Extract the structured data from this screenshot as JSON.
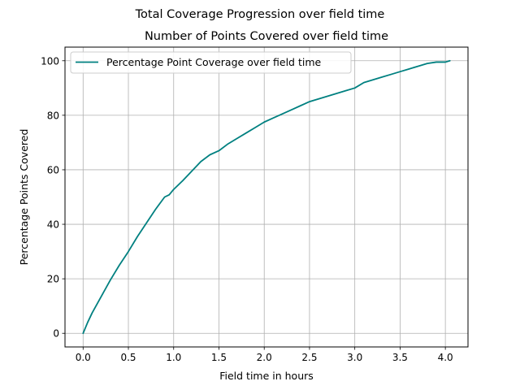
{
  "chart_data": {
    "type": "line",
    "suptitle": "Total Coverage Progression over field time",
    "title": "Number of Points Covered over field time",
    "xlabel": "Field time in hours",
    "ylabel": "Percentage Points Covered",
    "xlim": [
      -0.2,
      4.25
    ],
    "ylim": [
      -5,
      105
    ],
    "x_ticks": [
      0.0,
      0.5,
      1.0,
      1.5,
      2.0,
      2.5,
      3.0,
      3.5,
      4.0
    ],
    "x_tick_labels": [
      "0.0",
      "0.5",
      "1.0",
      "1.5",
      "2.0",
      "2.5",
      "3.0",
      "3.5",
      "4.0"
    ],
    "y_ticks": [
      0,
      20,
      40,
      60,
      80,
      100
    ],
    "y_tick_labels": [
      "0",
      "20",
      "40",
      "60",
      "80",
      "100"
    ],
    "grid": true,
    "legend_position": "top-left",
    "series": [
      {
        "name": "Percentage Point Coverage over field time",
        "color": "#008080",
        "x": [
          0.0,
          0.05,
          0.1,
          0.2,
          0.3,
          0.4,
          0.5,
          0.6,
          0.7,
          0.8,
          0.9,
          0.95,
          1.0,
          1.1,
          1.2,
          1.3,
          1.4,
          1.5,
          1.6,
          1.7,
          1.8,
          1.9,
          2.0,
          2.1,
          2.2,
          2.3,
          2.4,
          2.5,
          2.6,
          2.7,
          2.8,
          2.9,
          3.0,
          3.1,
          3.2,
          3.3,
          3.4,
          3.5,
          3.6,
          3.7,
          3.8,
          3.9,
          4.0,
          4.05
        ],
        "y": [
          0,
          4,
          7.5,
          13.5,
          19.5,
          25,
          30,
          35.5,
          40.5,
          45.5,
          50,
          50.8,
          52.8,
          56,
          59.5,
          63,
          65.5,
          67,
          69.5,
          71.5,
          73.5,
          75.5,
          77.5,
          79,
          80.5,
          82,
          83.5,
          85,
          86,
          87,
          88,
          89,
          90,
          92,
          93,
          94,
          95,
          96,
          97,
          98,
          99,
          99.5,
          99.5,
          100
        ]
      }
    ]
  }
}
